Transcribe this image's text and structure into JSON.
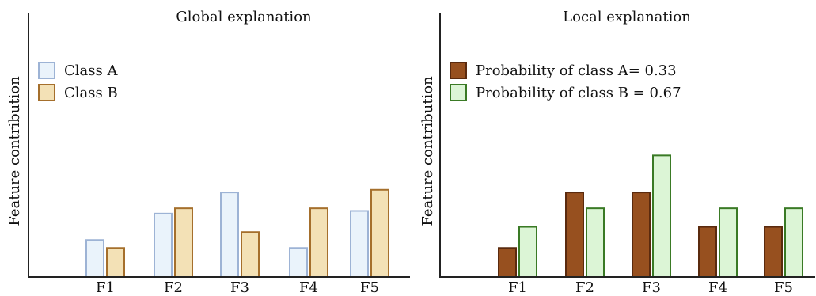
{
  "chart_data": [
    {
      "type": "bar",
      "title": "Global explanation",
      "xlabel": "",
      "ylabel": "Feature contribution",
      "categories": [
        "F1",
        "F2",
        "F3",
        "F4",
        "F5"
      ],
      "ylim": [
        0,
        1
      ],
      "y_ticks_shown": false,
      "grid": false,
      "legend_position": "top-left",
      "series": [
        {
          "name": "Class A",
          "values": [
            0.14,
            0.24,
            0.32,
            0.11,
            0.25
          ],
          "fill": "#eaf3fb",
          "stroke": "#9db3d5"
        },
        {
          "name": "Class B",
          "values": [
            0.11,
            0.26,
            0.17,
            0.26,
            0.33
          ],
          "fill": "#f3e1b6",
          "stroke": "#a56f2c"
        }
      ]
    },
    {
      "type": "bar",
      "title": "Local explanation",
      "xlabel": "",
      "ylabel": "Feature contribution",
      "categories": [
        "F1",
        "F2",
        "F3",
        "F4",
        "F5"
      ],
      "ylim": [
        0,
        1
      ],
      "y_ticks_shown": false,
      "grid": false,
      "legend_position": "top-left",
      "series": [
        {
          "name": "Probability of class A= 0.33",
          "values": [
            0.11,
            0.32,
            0.32,
            0.19,
            0.19
          ],
          "fill": "#97501f",
          "stroke": "#5a2a0e"
        },
        {
          "name": "Probability of class B = 0.67",
          "values": [
            0.19,
            0.26,
            0.46,
            0.26,
            0.26
          ],
          "fill": "#dcf5d6",
          "stroke": "#3a7a25"
        }
      ]
    }
  ]
}
